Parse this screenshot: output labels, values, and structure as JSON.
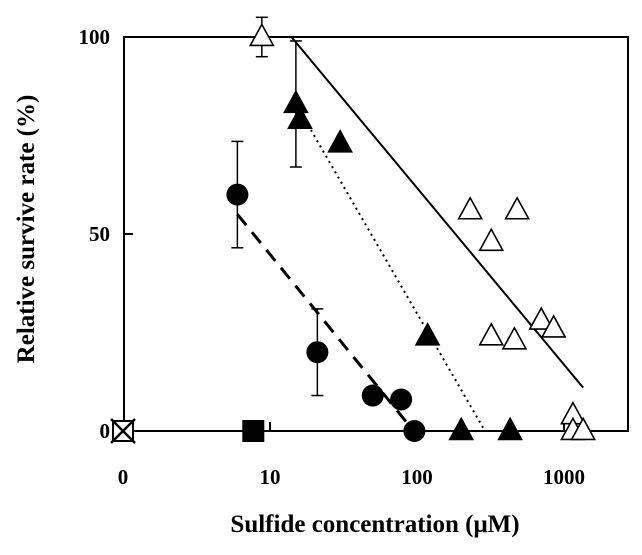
{
  "chart_data": {
    "type": "scatter",
    "title": "",
    "xlabel": "Sulfide concentration (μM)",
    "ylabel": "Relative survive rate (%)",
    "x_scale": "log",
    "xlim": [
      1,
      2000
    ],
    "ylim": [
      0,
      100
    ],
    "x_tick_labels": [
      "0",
      "10",
      "100",
      "1000"
    ],
    "y_tick_labels": [
      "0",
      "50",
      "100"
    ],
    "grid": false,
    "legend": "none",
    "series": [
      {
        "marker": "open-triangle",
        "color": "#000000",
        "points": [
          {
            "x": 8.8,
            "y": 100,
            "err": 5
          },
          {
            "x": 230,
            "y": 56
          },
          {
            "x": 480,
            "y": 56
          },
          {
            "x": 320,
            "y": 48
          },
          {
            "x": 320,
            "y": 24
          },
          {
            "x": 460,
            "y": 23
          },
          {
            "x": 700,
            "y": 28
          },
          {
            "x": 850,
            "y": 26
          },
          {
            "x": 1150,
            "y": 4
          },
          {
            "x": 1150,
            "y": 0
          },
          {
            "x": 1350,
            "y": 0
          }
        ],
        "trend": {
          "style": "solid",
          "x": [
            14,
            1350
          ],
          "y": [
            100,
            11
          ]
        }
      },
      {
        "marker": "filled-triangle",
        "color": "#000000",
        "points": [
          {
            "x": 15,
            "y": 83,
            "err": 16
          },
          {
            "x": 16,
            "y": 79
          },
          {
            "x": 30,
            "y": 73
          },
          {
            "x": 118,
            "y": 24
          },
          {
            "x": 200,
            "y": 0
          },
          {
            "x": 430,
            "y": 0
          }
        ],
        "trend": {
          "style": "dotted",
          "x": [
            15,
            290
          ],
          "y": [
            83,
            0
          ]
        }
      },
      {
        "marker": "filled-circle",
        "color": "#000000",
        "points": [
          {
            "x": 6,
            "y": 60,
            "err": 13.5
          },
          {
            "x": 21,
            "y": 20,
            "err": 11
          },
          {
            "x": 50,
            "y": 9
          },
          {
            "x": 78,
            "y": 8
          },
          {
            "x": 96,
            "y": 0
          }
        ],
        "trend": {
          "style": "dashed",
          "x": [
            6,
            95
          ],
          "y": [
            55,
            0
          ]
        }
      },
      {
        "marker": "filled-square",
        "color": "#000000",
        "points": [
          {
            "x": 7.7,
            "y": 0
          }
        ]
      },
      {
        "marker": "open-square-x",
        "color": "#000000",
        "points": [
          {
            "x": 1,
            "y": 0
          }
        ]
      }
    ]
  }
}
